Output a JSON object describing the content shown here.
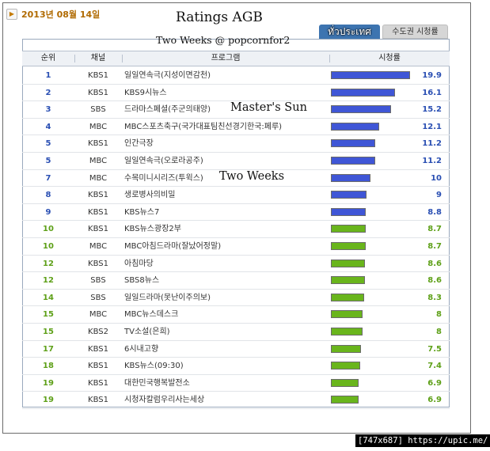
{
  "header": {
    "date_icon": "arrow-right-icon",
    "date": "2013년 08월 14일"
  },
  "overlays": {
    "title": "Ratings AGB",
    "subtitle": "Two Weeks @ popcornfor2",
    "annotation_masters_sun": "Master's Sun",
    "annotation_two_weeks": "Two Weeks"
  },
  "tabs": [
    {
      "label": "ทั่วประเทศ",
      "active": true
    },
    {
      "label": "수도권 시청률",
      "active": false
    }
  ],
  "table": {
    "columns": [
      "순위",
      "채널",
      "프로그램",
      "시청률"
    ],
    "colors": {
      "rank_top": "#2a4fb3",
      "rank_rest": "#5ea018",
      "bar_blue": "#3f56d6",
      "bar_green": "#69b51c"
    },
    "max_rating": 19.9,
    "rows": [
      {
        "rank": "1",
        "channel": "KBS1",
        "program": "일일연속극(지성이면감천)",
        "rating": "19.9",
        "tier": "top"
      },
      {
        "rank": "2",
        "channel": "KBS1",
        "program": "KBS9시뉴스",
        "rating": "16.1",
        "tier": "top"
      },
      {
        "rank": "3",
        "channel": "SBS",
        "program": "드라마스페셜(주군의태양)",
        "rating": "15.2",
        "tier": "top"
      },
      {
        "rank": "4",
        "channel": "MBC",
        "program": "MBC스포츠축구(국가대표팀친선경기한국:페루)",
        "rating": "12.1",
        "tier": "top"
      },
      {
        "rank": "5",
        "channel": "KBS1",
        "program": "인간극장",
        "rating": "11.2",
        "tier": "top"
      },
      {
        "rank": "5",
        "channel": "MBC",
        "program": "일일연속극(오로라공주)",
        "rating": "11.2",
        "tier": "top"
      },
      {
        "rank": "7",
        "channel": "MBC",
        "program": "수목미니시리즈(투윅스)",
        "rating": "10",
        "tier": "top"
      },
      {
        "rank": "8",
        "channel": "KBS1",
        "program": "생로병사의비밀",
        "rating": "9",
        "tier": "top"
      },
      {
        "rank": "9",
        "channel": "KBS1",
        "program": "KBS뉴스7",
        "rating": "8.8",
        "tier": "top"
      },
      {
        "rank": "10",
        "channel": "KBS1",
        "program": "KBS뉴스광장2부",
        "rating": "8.7",
        "tier": "rest"
      },
      {
        "rank": "10",
        "channel": "MBC",
        "program": "MBC아침드라마(잘났어정말)",
        "rating": "8.7",
        "tier": "rest"
      },
      {
        "rank": "12",
        "channel": "KBS1",
        "program": "아침마당",
        "rating": "8.6",
        "tier": "rest"
      },
      {
        "rank": "12",
        "channel": "SBS",
        "program": "SBS8뉴스",
        "rating": "8.6",
        "tier": "rest"
      },
      {
        "rank": "14",
        "channel": "SBS",
        "program": "일일드라마(못난이주의보)",
        "rating": "8.3",
        "tier": "rest"
      },
      {
        "rank": "15",
        "channel": "MBC",
        "program": "MBC뉴스데스크",
        "rating": "8",
        "tier": "rest"
      },
      {
        "rank": "15",
        "channel": "KBS2",
        "program": "TV소설(은희)",
        "rating": "8",
        "tier": "rest"
      },
      {
        "rank": "17",
        "channel": "KBS1",
        "program": "6시내고향",
        "rating": "7.5",
        "tier": "rest"
      },
      {
        "rank": "18",
        "channel": "KBS1",
        "program": "KBS뉴스(09:30)",
        "rating": "7.4",
        "tier": "rest"
      },
      {
        "rank": "19",
        "channel": "KBS1",
        "program": "대한민국행복발전소",
        "rating": "6.9",
        "tier": "rest"
      },
      {
        "rank": "19",
        "channel": "KBS1",
        "program": "시청자칼럼우리사는세상",
        "rating": "6.9",
        "tier": "rest"
      }
    ]
  },
  "footer": {
    "image_info": "[747x687] https://upic.me/"
  }
}
